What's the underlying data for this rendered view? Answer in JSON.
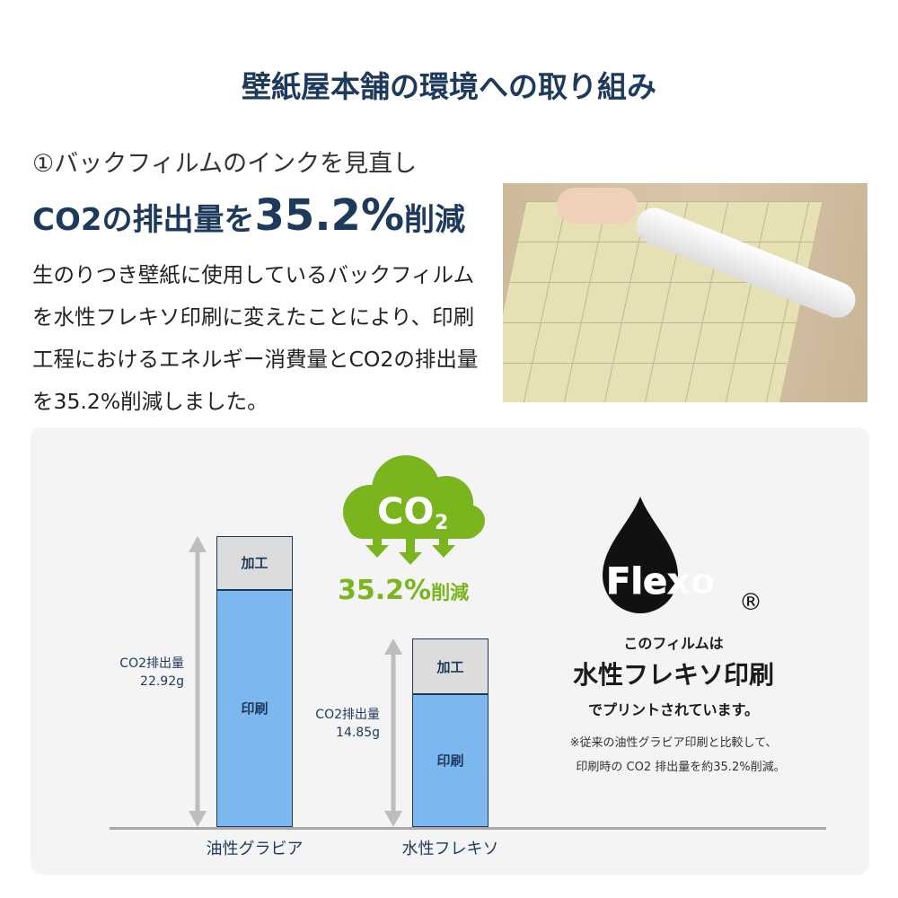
{
  "title": "壁紙屋本舗の環境への取り組み",
  "section": {
    "subtitle": "①バックフィルムのインクを見直し",
    "headline_prefix": "CO2の排出量を",
    "headline_value": "35.2%",
    "headline_suffix": "削減",
    "body": "生のりつき壁紙に使用しているバックフィルムを水性フレキソ印刷に変えたことにより、印刷工程におけるエネルギー消費量とCO2の排出量を35.2%削減しました。"
  },
  "photo": {
    "alt": "back-film-roll-photo"
  },
  "badge": {
    "cloud_text": "CO",
    "cloud_sub": "2",
    "reduction_value": "35.2%",
    "reduction_label": "削減",
    "color": "#7ab51d"
  },
  "flexo": {
    "logo": "Flexo",
    "registered": "®",
    "line1": "このフィルムは",
    "line2": "水性フレキソ印刷",
    "line3": "でプリントされています。",
    "note1": "※従来の油性グラビア印刷と比較して、",
    "note2": "印刷時の CO2 排出量を約35.2%削減。"
  },
  "chart_data": {
    "type": "bar",
    "stacked": true,
    "ylabel_prefix": "CO2排出量",
    "unit": "g",
    "categories": [
      "油性グラビア",
      "水性フレキソ"
    ],
    "totals": [
      22.92,
      14.85
    ],
    "total_labels": [
      "22.92g",
      "14.85g"
    ],
    "series": [
      {
        "name": "印刷",
        "values": [
          18.68,
          10.47
        ],
        "color": "#7db7ef"
      },
      {
        "name": "加工",
        "values": [
          4.24,
          4.38
        ],
        "color": "#dcdcdc"
      }
    ]
  }
}
